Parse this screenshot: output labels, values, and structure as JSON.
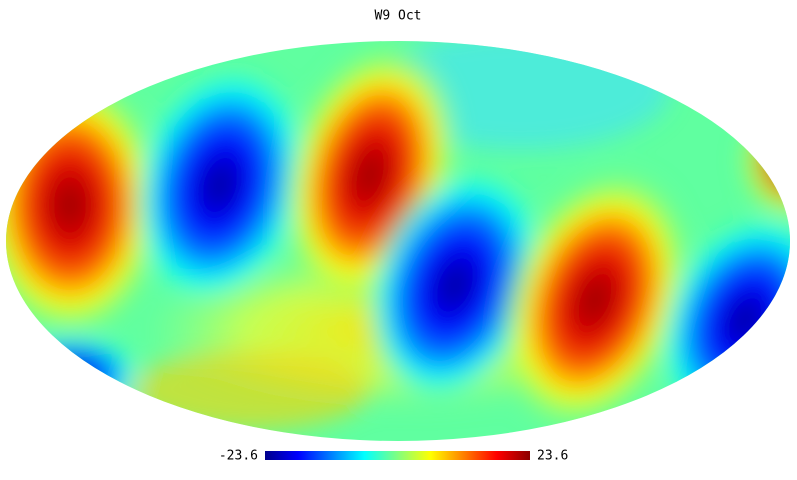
{
  "title": "W9 Oct",
  "colorbar": {
    "min": -23.6,
    "max": 23.6
  }
}
